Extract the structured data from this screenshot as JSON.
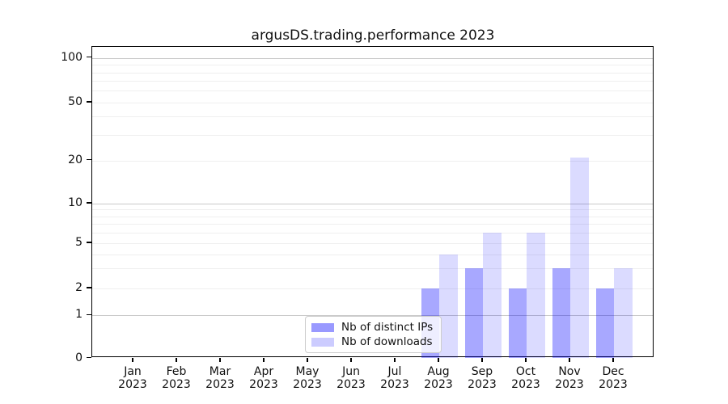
{
  "chart_data": {
    "type": "bar",
    "title": "argusDS.trading.performance 2023",
    "categories": [
      "Jan",
      "Feb",
      "Mar",
      "Apr",
      "May",
      "Jun",
      "Jul",
      "Aug",
      "Sep",
      "Oct",
      "Nov",
      "Dec"
    ],
    "x_year_label": "2023",
    "series": [
      {
        "name": "Nb of distinct IPs",
        "color": "#0000ff",
        "alpha": 0.34,
        "values": [
          0,
          0,
          0,
          0,
          0,
          0,
          0,
          2,
          3,
          2,
          3,
          2
        ]
      },
      {
        "name": "Nb of downloads",
        "color": "#0000ff",
        "alpha": 0.14,
        "values": [
          0,
          0,
          0,
          0,
          0,
          0,
          0,
          4,
          6,
          6,
          21,
          3
        ]
      }
    ],
    "yscale": "symlog",
    "y_tick_labels": [
      0,
      1,
      2,
      5,
      10,
      20,
      50,
      100
    ],
    "y_major_gridlines": [
      1,
      10,
      100
    ],
    "y_minor_gridlines": [
      2,
      3,
      4,
      5,
      6,
      7,
      8,
      9,
      20,
      30,
      40,
      50,
      60,
      70,
      80,
      90
    ],
    "ylim": [
      0,
      120
    ],
    "grid": true,
    "legend_position": "lower center",
    "colors": {
      "bar_distinct_ips_rendered": "#a8a8fa",
      "bar_downloads_rendered": "#dbdbfa",
      "major_grid": "#c9c9c9",
      "minor_grid": "#efefef",
      "axis": "#000000",
      "background": "#ffffff"
    }
  }
}
